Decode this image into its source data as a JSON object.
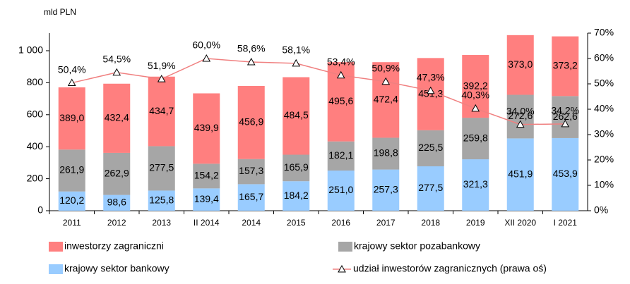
{
  "chart_data": {
    "type": "bar",
    "stacked": true,
    "ylabel": "mld PLN",
    "categories": [
      "2011",
      "2012",
      "2013",
      "II 2014",
      "2014",
      "2015",
      "2016",
      "2017",
      "2018",
      "2019",
      "XII 2020",
      "I 2021"
    ],
    "series": [
      {
        "name": "krajowy sektor bankowy",
        "color": "#99ccff",
        "values": [
          120.2,
          98.6,
          125.8,
          139.4,
          165.7,
          184.2,
          251.0,
          257.3,
          277.5,
          321.3,
          451.9,
          453.9
        ],
        "value_labels": [
          "120,2",
          "98,6",
          "125,8",
          "139,4",
          "165,7",
          "184,2",
          "251,0",
          "257,3",
          "277,5",
          "321,3",
          "451,9",
          "453,9"
        ]
      },
      {
        "name": "krajowy sektor pozabankowy",
        "color": "#a6a6a6",
        "values": [
          261.9,
          262.9,
          277.5,
          154.2,
          157.3,
          165.9,
          182.1,
          198.8,
          225.5,
          259.8,
          272.6,
          262.6
        ],
        "value_labels": [
          "261,9",
          "262,9",
          "277,5",
          "154,2",
          "157,3",
          "165,9",
          "182,1",
          "198,8",
          "225,5",
          "259,8",
          "272,6",
          "262,6"
        ]
      },
      {
        "name": "inwestorzy zagraniczni",
        "color": "#ff7f7f",
        "values": [
          389.0,
          432.4,
          434.7,
          439.9,
          456.9,
          484.5,
          495.6,
          472.4,
          451.3,
          392.2,
          373.0,
          373.2
        ],
        "value_labels": [
          "389,0",
          "432,4",
          "434,7",
          "439,9",
          "456,9",
          "484,5",
          "495,6",
          "472,4",
          "451,3",
          "392,2",
          "373,0",
          "373,2"
        ]
      },
      {
        "name": "udział inwestorów zagranicznych (prawa oś)",
        "type": "line",
        "axis": "y2",
        "color": "#f08080",
        "values": [
          50.4,
          54.5,
          51.9,
          60.0,
          58.6,
          58.1,
          53.4,
          50.9,
          47.3,
          40.3,
          34.0,
          34.2
        ],
        "value_labels": [
          "50,4%",
          "54,5%",
          "51,9%",
          "60,0%",
          "58,6%",
          "58,1%",
          "53,4%",
          "50,9%",
          "47,3%",
          "40,3%",
          "34,0%",
          "34,2%"
        ]
      }
    ],
    "ylim": [
      0,
      1110
    ],
    "yticks": [
      0,
      200,
      400,
      600,
      800,
      {
        "value": 1000,
        "label": "1 000"
      }
    ],
    "y2lim": [
      0,
      70
    ],
    "y2ticks": [
      {
        "value": 0,
        "label": "0%"
      },
      {
        "value": 10,
        "label": "10%"
      },
      {
        "value": 20,
        "label": "20%"
      },
      {
        "value": 30,
        "label": "30%"
      },
      {
        "value": 40,
        "label": "40%"
      },
      {
        "value": 50,
        "label": "50%"
      },
      {
        "value": 60,
        "label": "60%"
      },
      {
        "value": 70,
        "label": "70%"
      }
    ],
    "legend": "bottom"
  }
}
